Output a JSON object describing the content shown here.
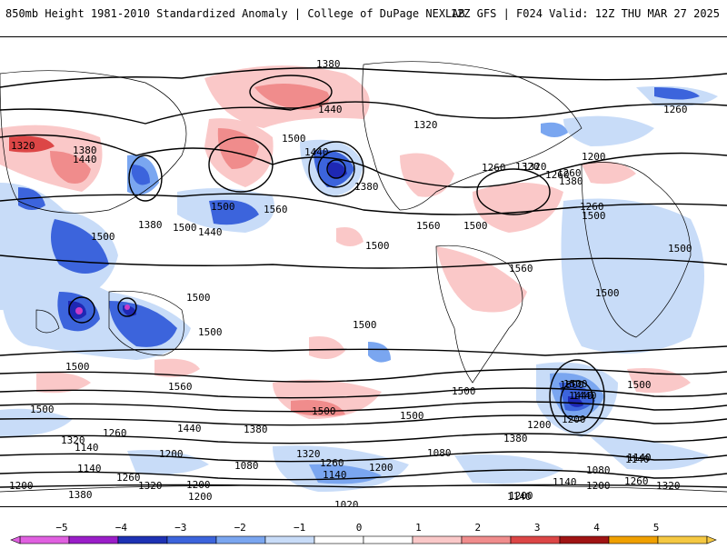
{
  "header": {
    "title": "850mb Height 1981-2010 Standardized Anomaly | College of DuPage NEXLAB",
    "run_info": "12Z GFS | F024 Valid: 12Z THU MAR 27 2025"
  },
  "map": {
    "contour_labels": [
      "1380",
      "1440",
      "1260",
      "1320",
      "1380",
      "1440",
      "1500",
      "1320",
      "1440",
      "1500",
      "1500",
      "1440",
      "1560",
      "1500",
      "1380",
      "1380",
      "1500",
      "1500",
      "1560",
      "1500",
      "1560",
      "1500",
      "1500",
      "1500",
      "1500",
      "1500",
      "1500",
      "1500",
      "1500",
      "1560",
      "1500",
      "1500",
      "1440",
      "1500",
      "1440",
      "1380",
      "1320",
      "1260",
      "1200",
      "1500",
      "1320",
      "1260",
      "1200",
      "1140",
      "1080",
      "1140",
      "1200",
      "1140",
      "1380",
      "1320",
      "1260",
      "1200",
      "1080",
      "1140",
      "1260",
      "1320",
      "1200",
      "1260",
      "1320",
      "1140",
      "1200",
      "1080",
      "1140",
      "1020",
      "1200",
      "1260",
      "1260",
      "1260",
      "1320",
      "1380",
      "1200",
      "1320",
      "1260",
      "1200",
      "1140",
      "1080",
      "1200",
      "1140",
      "1200",
      "1140",
      "1500",
      "1440",
      "1380"
    ],
    "colors": {
      "ocean": "#ffffff",
      "neg5": "#c83cc8",
      "neg4": "#1e28b4",
      "neg3": "#3c64dc",
      "neg2": "#7aa6f0",
      "neg1": "#c8dcf8",
      "pos1": "#fac8c8",
      "pos2": "#f08c8c",
      "pos3": "#dc4646",
      "pos4": "#b41e1e",
      "pos5": "#f0a000"
    }
  },
  "colorbar": {
    "tick_labels": [
      "−5",
      "−4",
      "−3",
      "−2",
      "−1",
      "0",
      "1",
      "2",
      "3",
      "4",
      "5"
    ],
    "colors": [
      "#e060e0",
      "#9a1ec8",
      "#1e32b4",
      "#3c64dc",
      "#7aa6f0",
      "#c8dcf8",
      "#ffffff",
      "#ffffff",
      "#fac8c8",
      "#f08c8c",
      "#dc4646",
      "#a01414",
      "#f0a000",
      "#f5c842"
    ]
  }
}
